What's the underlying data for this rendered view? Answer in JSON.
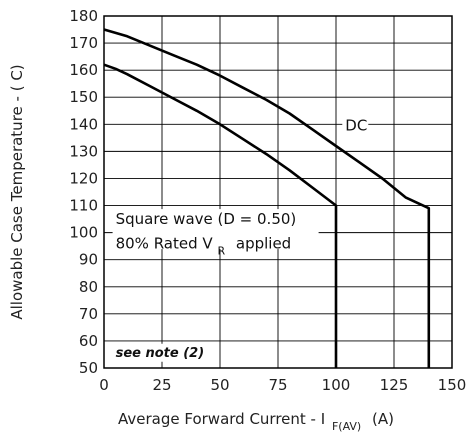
{
  "chart_data": {
    "type": "line",
    "title": "",
    "xlabel": "Average Forward Current - I",
    "xlabel_sub": "F(AV)",
    "xlabel_unit": "(A)",
    "ylabel": "Allowable Case Temperature - ( C)",
    "xlim": [
      0,
      150
    ],
    "ylim": [
      50,
      180
    ],
    "xticks": [
      0,
      25,
      50,
      75,
      100,
      125,
      150
    ],
    "yticks": [
      50,
      60,
      70,
      80,
      90,
      100,
      110,
      120,
      130,
      140,
      150,
      160,
      170,
      180
    ],
    "grid": true,
    "series": [
      {
        "name": "DC",
        "x": [
          0,
          10,
          20,
          30,
          40,
          50,
          60,
          70,
          80,
          90,
          100,
          110,
          120,
          130,
          140,
          140
        ],
        "y": [
          175,
          172.5,
          169,
          165.5,
          162,
          158,
          153.5,
          149,
          144,
          138,
          132,
          126,
          120,
          113,
          109,
          50
        ]
      },
      {
        "name": "Square wave (D = 0.50)",
        "x": [
          0,
          5,
          10,
          20,
          30,
          40,
          50,
          60,
          70,
          80,
          90,
          100,
          100
        ],
        "y": [
          162,
          160.5,
          158.5,
          154,
          149.5,
          145,
          140,
          134.5,
          129,
          123,
          116.5,
          110,
          50
        ]
      }
    ],
    "annotations": {
      "dc_label": "DC",
      "square_line1": "Square wave (D = 0.50)",
      "square_line2_a": "80% Rated V",
      "square_line2_sub": "R",
      "square_line2_b": "applied",
      "note": "see note (2)"
    }
  }
}
